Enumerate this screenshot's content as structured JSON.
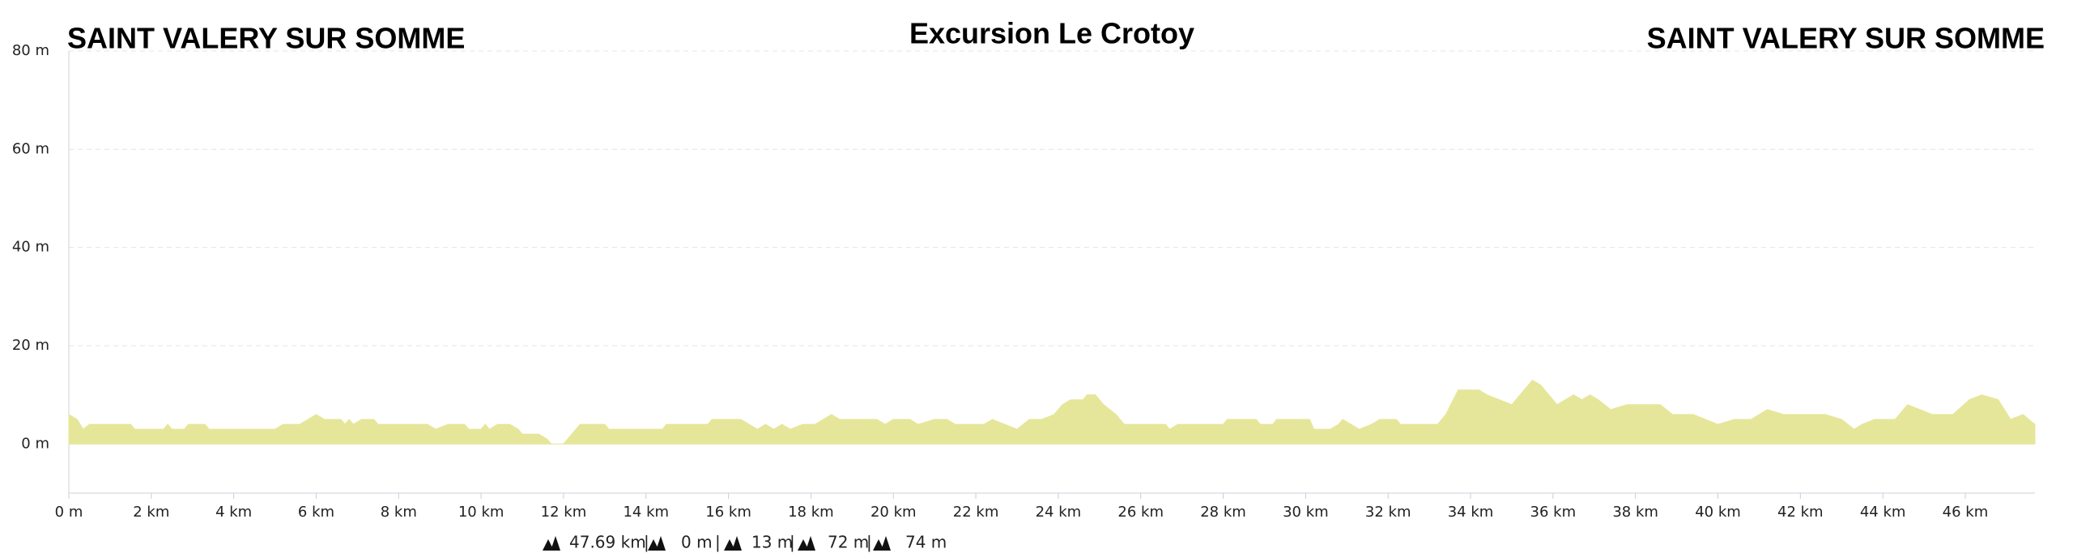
{
  "chart_data": {
    "type": "area",
    "title": "Excursion Le Crotoy",
    "start_label": "SAINT VALERY SUR SOMME",
    "end_label": "SAINT VALERY SUR SOMME",
    "color": "#e6e69a",
    "grid": true,
    "xlim": [
      0,
      47.69
    ],
    "ylim": [
      -10,
      80
    ],
    "xticks": [
      {
        "value": 0,
        "label": "0 m"
      },
      {
        "value": 2,
        "label": "2 km"
      },
      {
        "value": 4,
        "label": "4 km"
      },
      {
        "value": 6,
        "label": "6 km"
      },
      {
        "value": 8,
        "label": "8 km"
      },
      {
        "value": 10,
        "label": "10 km"
      },
      {
        "value": 12,
        "label": "12 km"
      },
      {
        "value": 14,
        "label": "14 km"
      },
      {
        "value": 16,
        "label": "16 km"
      },
      {
        "value": 18,
        "label": "18 km"
      },
      {
        "value": 20,
        "label": "20 km"
      },
      {
        "value": 22,
        "label": "22 km"
      },
      {
        "value": 24,
        "label": "24 km"
      },
      {
        "value": 26,
        "label": "26 km"
      },
      {
        "value": 28,
        "label": "28 km"
      },
      {
        "value": 30,
        "label": "30 km"
      },
      {
        "value": 32,
        "label": "32 km"
      },
      {
        "value": 34,
        "label": "34 km"
      },
      {
        "value": 36,
        "label": "36 km"
      },
      {
        "value": 38,
        "label": "38 km"
      },
      {
        "value": 40,
        "label": "40 km"
      },
      {
        "value": 42,
        "label": "42 km"
      },
      {
        "value": 44,
        "label": "44 km"
      },
      {
        "value": 46,
        "label": "46 km"
      }
    ],
    "yticks": [
      {
        "value": 0,
        "label": "0 m"
      },
      {
        "value": 20,
        "label": "20 m"
      },
      {
        "value": 40,
        "label": "40 m"
      },
      {
        "value": 60,
        "label": "60 m"
      },
      {
        "value": 80,
        "label": "80 m"
      }
    ],
    "x": [
      0,
      0.2,
      0.35,
      0.5,
      1.5,
      1.6,
      2.3,
      2.4,
      2.5,
      2.8,
      2.9,
      3.3,
      3.4,
      5.0,
      5.2,
      5.6,
      5.8,
      6.0,
      6.2,
      6.6,
      6.7,
      6.8,
      6.9,
      7.1,
      7.4,
      7.5,
      8.7,
      8.9,
      9.2,
      9.6,
      9.7,
      10.0,
      10.1,
      10.2,
      10.4,
      10.7,
      10.9,
      11.0,
      11.4,
      11.6,
      11.7,
      12.0,
      12.2,
      12.4,
      13.0,
      13.1,
      14.4,
      14.5,
      15.5,
      15.6,
      16.3,
      16.5,
      16.7,
      16.9,
      17.1,
      17.3,
      17.5,
      17.8,
      18.1,
      18.3,
      18.5,
      18.7,
      19.6,
      19.8,
      20.0,
      20.4,
      20.6,
      21.0,
      21.3,
      21.5,
      22.2,
      22.4,
      22.7,
      23.0,
      23.3,
      23.6,
      23.9,
      24.1,
      24.3,
      24.6,
      24.7,
      24.9,
      25.1,
      25.4,
      25.6,
      26.6,
      26.7,
      26.9,
      28.0,
      28.1,
      28.8,
      28.9,
      29.2,
      29.3,
      30.1,
      30.2,
      30.6,
      30.8,
      30.9,
      31.1,
      31.3,
      31.6,
      31.8,
      32.2,
      32.3,
      33.2,
      33.4,
      33.7,
      34.2,
      34.4,
      34.7,
      35.0,
      35.2,
      35.5,
      35.7,
      35.9,
      36.1,
      36.3,
      36.5,
      36.7,
      36.9,
      37.1,
      37.4,
      37.8,
      38.6,
      38.9,
      39.4,
      39.7,
      40.0,
      40.4,
      40.8,
      41.2,
      41.6,
      42.6,
      43.0,
      43.3,
      43.5,
      43.8,
      44.3,
      44.6,
      44.9,
      45.2,
      45.7,
      46.1,
      46.4,
      46.8,
      47.1,
      47.4,
      47.69
    ],
    "y": [
      6,
      5,
      3,
      4,
      4,
      3,
      3,
      4,
      3,
      3,
      4,
      4,
      3,
      3,
      4,
      4,
      5,
      6,
      5,
      5,
      4,
      5,
      4,
      5,
      5,
      4,
      4,
      3,
      4,
      4,
      3,
      3,
      4,
      3,
      4,
      4,
      3,
      2,
      2,
      1,
      0,
      0,
      2,
      4,
      4,
      3,
      3,
      4,
      4,
      5,
      5,
      4,
      3,
      4,
      3,
      4,
      3,
      4,
      4,
      5,
      6,
      5,
      5,
      4,
      5,
      5,
      4,
      5,
      5,
      4,
      4,
      5,
      4,
      3,
      5,
      5,
      6,
      8,
      9,
      9,
      10,
      10,
      8,
      6,
      4,
      4,
      3,
      4,
      4,
      5,
      5,
      4,
      4,
      5,
      5,
      3,
      3,
      4,
      5,
      4,
      3,
      4,
      5,
      5,
      4,
      4,
      6,
      11,
      11,
      10,
      9,
      8,
      10,
      13,
      12,
      10,
      8,
      9,
      10,
      9,
      10,
      9,
      7,
      8,
      8,
      6,
      6,
      5,
      4,
      5,
      5,
      7,
      6,
      6,
      5,
      3,
      4,
      5,
      5,
      8,
      7,
      6,
      6,
      9,
      10,
      9,
      5,
      6,
      4
    ],
    "stats": [
      "47.69 km",
      "0 m",
      "13 m",
      "72 m",
      "74 m"
    ],
    "separator": "|"
  }
}
